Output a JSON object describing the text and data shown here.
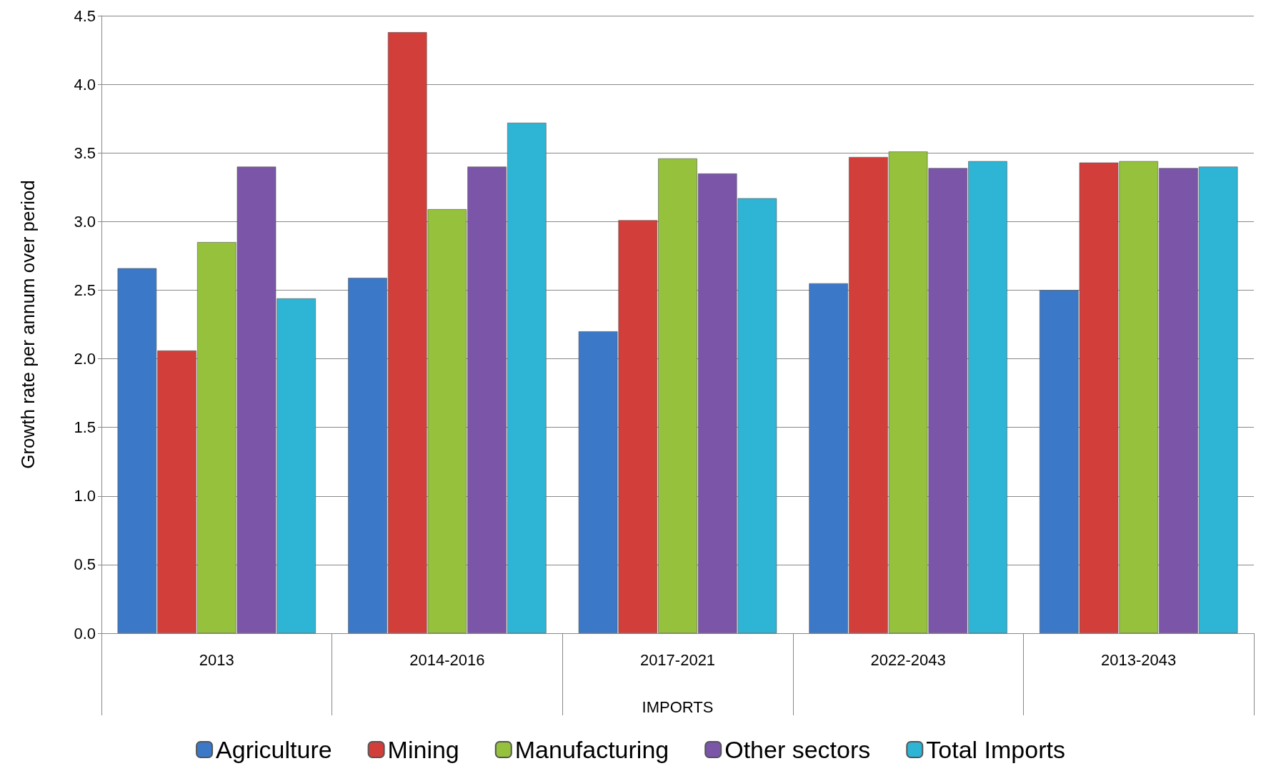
{
  "chart_data": {
    "type": "bar",
    "ylabel": "Growth rate per annum over period",
    "xlabel": "IMPORTS",
    "categories": [
      "2013",
      "2014-2016",
      "2017-2021",
      "2022-2043",
      "2013-2043"
    ],
    "series": [
      {
        "name": "Agriculture",
        "color": "#3b78c8",
        "values": [
          2.66,
          2.59,
          2.2,
          2.55,
          2.5
        ]
      },
      {
        "name": "Mining",
        "color": "#d23f3b",
        "values": [
          2.06,
          4.38,
          3.01,
          3.47,
          3.43
        ]
      },
      {
        "name": "Manufacturing",
        "color": "#95c13d",
        "values": [
          2.85,
          3.09,
          3.46,
          3.51,
          3.44
        ]
      },
      {
        "name": "Other sectors",
        "color": "#7a55a8",
        "values": [
          3.4,
          3.4,
          3.35,
          3.39,
          3.39
        ]
      },
      {
        "name": "Total Imports",
        "color": "#2eb4d4",
        "values": [
          2.44,
          3.72,
          3.17,
          3.44,
          3.4
        ]
      }
    ],
    "ylim": [
      0,
      4.5
    ],
    "yticks": [
      {
        "value": 0,
        "label": "0.0"
      },
      {
        "value": 0.5,
        "label": "0.5"
      },
      {
        "value": 1,
        "label": "1.0"
      },
      {
        "value": 1.5,
        "label": "1.5"
      },
      {
        "value": 2,
        "label": "2.0"
      },
      {
        "value": 2.5,
        "label": "2.5"
      },
      {
        "value": 3,
        "label": "3.0"
      },
      {
        "value": 3.5,
        "label": "3.5"
      },
      {
        "value": 4,
        "label": "4.0"
      },
      {
        "value": 4.5,
        "label": "4.5"
      }
    ],
    "grid": "y",
    "legend": "bottom"
  }
}
